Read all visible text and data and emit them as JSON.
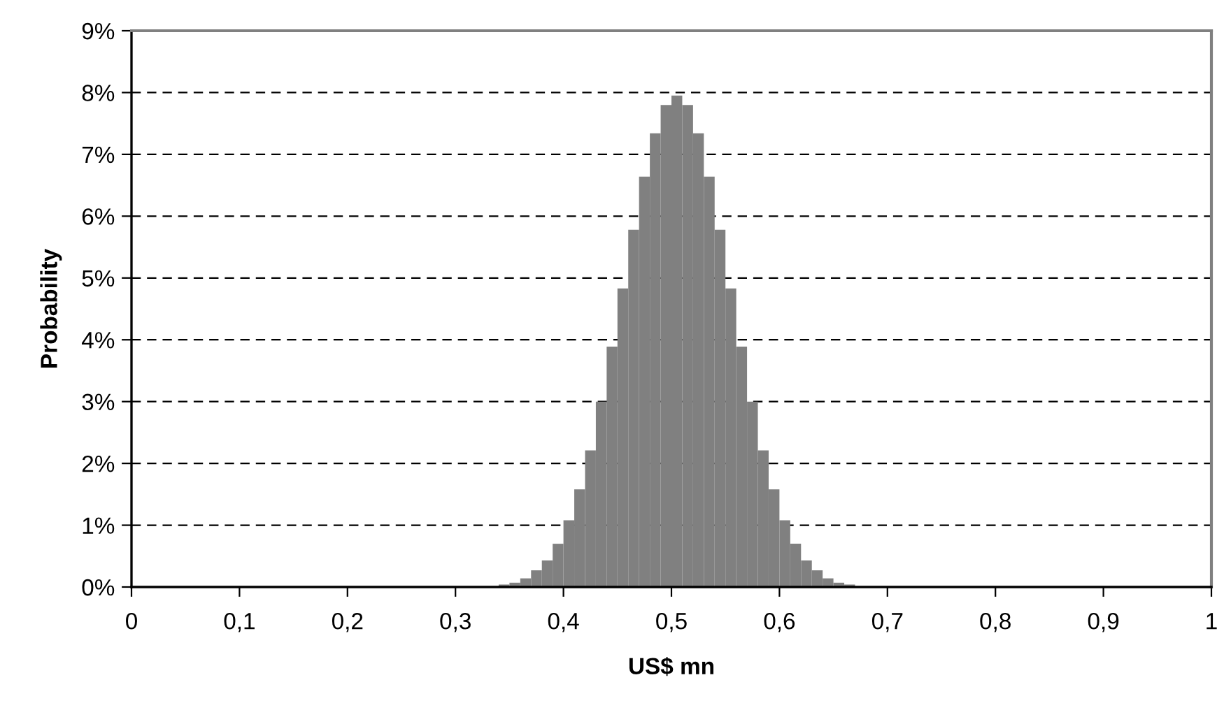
{
  "chart_data": {
    "type": "histogram",
    "xlabel": "US$ mn",
    "ylabel": "Probability",
    "bins": [
      0.33,
      0.34,
      0.35,
      0.36,
      0.37,
      0.38,
      0.39,
      0.4,
      0.41,
      0.42,
      0.43,
      0.44,
      0.45,
      0.46,
      0.47,
      0.48,
      0.49,
      0.5,
      0.51,
      0.52,
      0.53,
      0.54,
      0.55,
      0.56,
      0.57,
      0.58,
      0.59,
      0.6,
      0.61,
      0.62,
      0.63,
      0.64,
      0.65,
      0.66,
      0.67,
      0.68
    ],
    "values": [
      0.01,
      0.04,
      0.07,
      0.14,
      0.27,
      0.43,
      0.7,
      1.08,
      1.58,
      2.21,
      3.0,
      3.89,
      4.83,
      5.78,
      6.64,
      7.34,
      7.8,
      7.95,
      7.8,
      7.34,
      6.64,
      5.78,
      4.83,
      3.89,
      3.0,
      2.21,
      1.58,
      1.08,
      0.7,
      0.43,
      0.27,
      0.14,
      0.07,
      0.04,
      0.01
    ],
    "color": "#808080",
    "xlim": [
      0,
      1
    ],
    "xticks": [
      0,
      {
        "value": 0.1,
        "label": "0,1"
      },
      {
        "value": 0.2,
        "label": "0,2"
      },
      {
        "value": 0.3,
        "label": "0,3"
      },
      {
        "value": 0.4,
        "label": "0,4"
      },
      {
        "value": 0.5,
        "label": "0,5"
      },
      {
        "value": 0.6,
        "label": "0,6"
      },
      {
        "value": 0.7,
        "label": "0,7"
      },
      {
        "value": 0.8,
        "label": "0,8"
      },
      {
        "value": 0.9,
        "label": "0,9"
      },
      1
    ],
    "ylim": [
      0,
      9
    ],
    "yticks": [
      {
        "value": 0,
        "label": "0%"
      },
      {
        "value": 1,
        "label": "1%"
      },
      {
        "value": 2,
        "label": "2%"
      },
      {
        "value": 3,
        "label": "3%"
      },
      {
        "value": 4,
        "label": "4%"
      },
      {
        "value": 5,
        "label": "5%"
      },
      {
        "value": 6,
        "label": "6%"
      },
      {
        "value": 7,
        "label": "7%"
      },
      {
        "value": 8,
        "label": "8%"
      },
      {
        "value": 9,
        "label": "9%"
      }
    ],
    "grid": "y"
  }
}
